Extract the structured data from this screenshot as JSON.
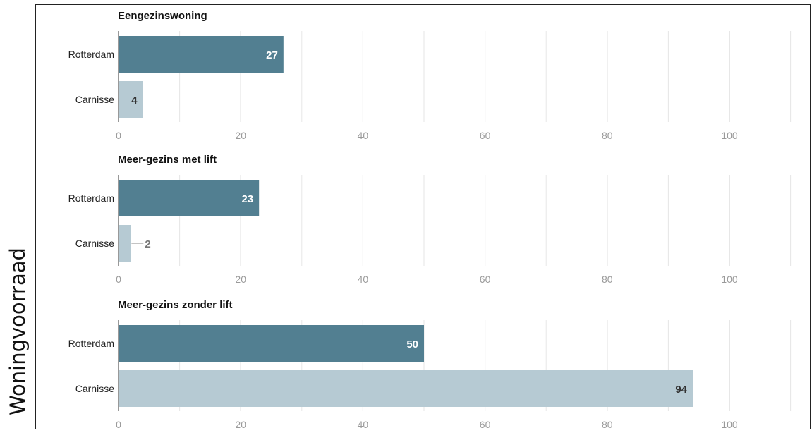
{
  "side_label": "Woningvoorraad",
  "colors": {
    "rotterdam": "#527f91",
    "carnisse": "#b6cad3",
    "grid": "#d9d9d9",
    "tick": "#9a9a9a"
  },
  "chart_data": [
    {
      "type": "bar",
      "orientation": "horizontal",
      "title": "Eengezinswoning",
      "categories": [
        "Rotterdam",
        "Carnisse"
      ],
      "values": [
        27,
        4
      ],
      "xlim": [
        0,
        110
      ],
      "x_ticks": [
        0,
        20,
        40,
        60,
        80,
        100
      ],
      "grid": true
    },
    {
      "type": "bar",
      "orientation": "horizontal",
      "title": "Meer-gezins met lift",
      "categories": [
        "Rotterdam",
        "Carnisse"
      ],
      "values": [
        23,
        2
      ],
      "xlim": [
        0,
        110
      ],
      "x_ticks": [
        0,
        20,
        40,
        60,
        80,
        100
      ],
      "grid": true
    },
    {
      "type": "bar",
      "orientation": "horizontal",
      "title": "Meer-gezins zonder lift",
      "categories": [
        "Rotterdam",
        "Carnisse"
      ],
      "values": [
        50,
        94
      ],
      "xlim": [
        0,
        110
      ],
      "x_ticks": [
        0,
        20,
        40,
        60,
        80,
        100
      ],
      "grid": true
    }
  ]
}
